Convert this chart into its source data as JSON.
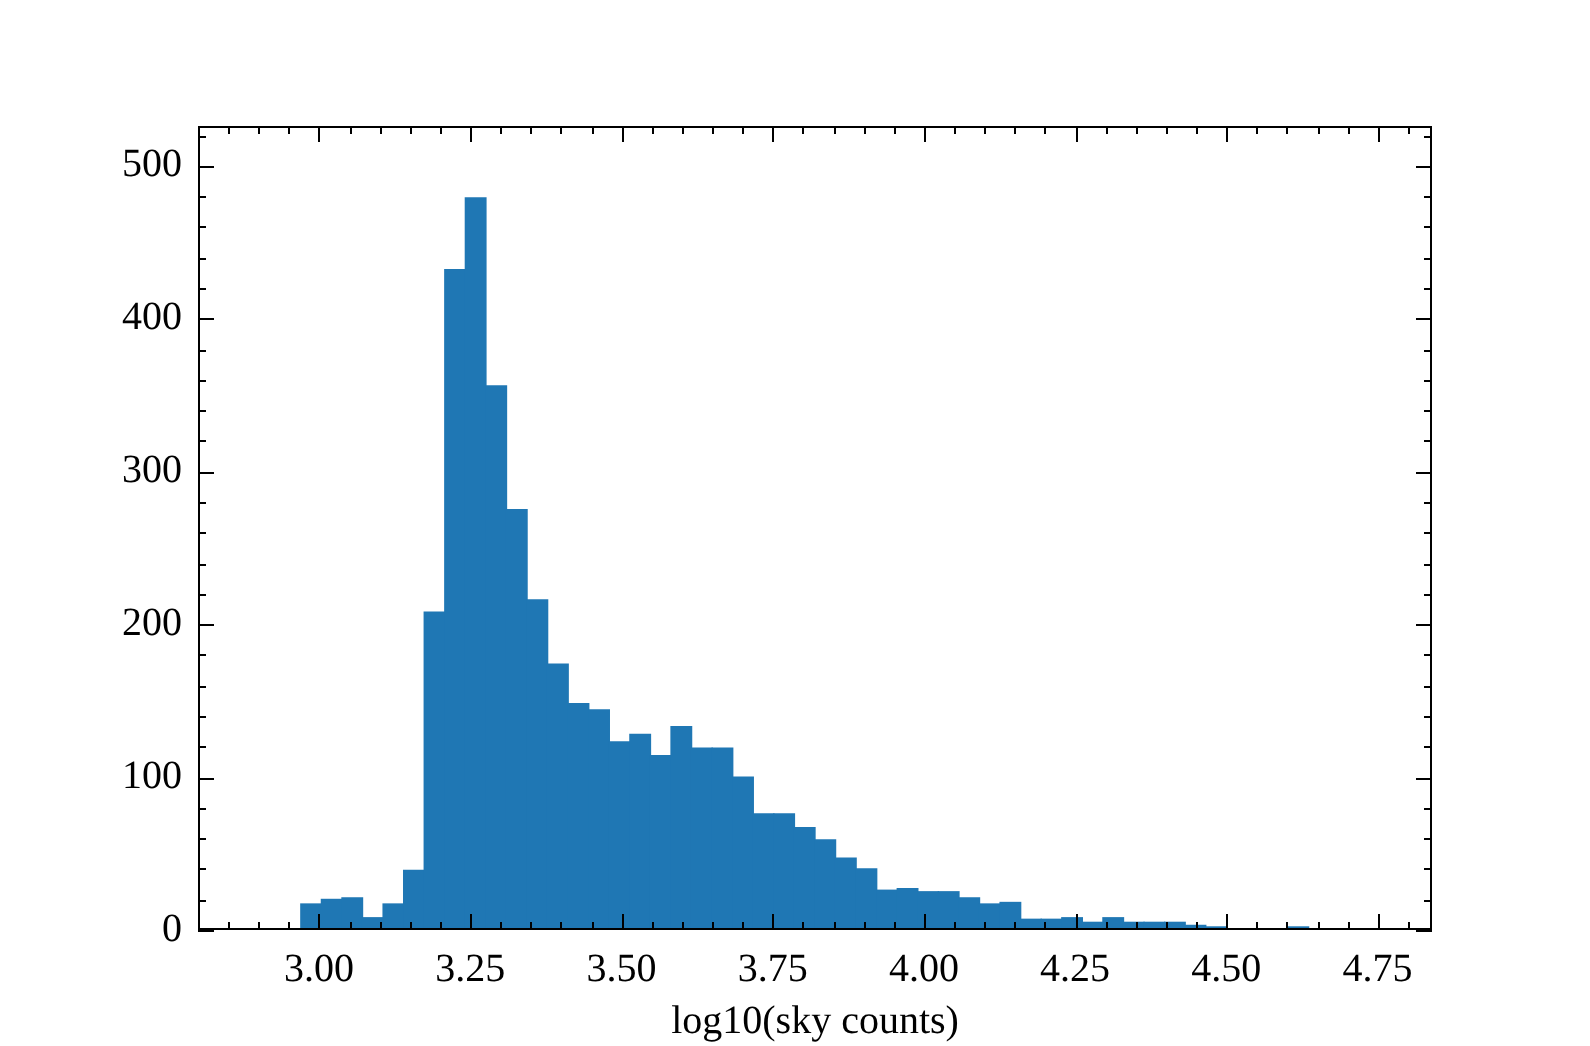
{
  "chart_data": {
    "type": "histogram",
    "xlabel": "log10(sky counts)",
    "bins": [
      2.97,
      3.004,
      3.038,
      3.072,
      3.106,
      3.14,
      3.174,
      3.208,
      3.242,
      3.276,
      3.31,
      3.344,
      3.378,
      3.412,
      3.446,
      3.48,
      3.514,
      3.548,
      3.582,
      3.616,
      3.65,
      3.684,
      3.718,
      3.752,
      3.786,
      3.82,
      3.854,
      3.888,
      3.922,
      3.956,
      3.99,
      4.024,
      4.058,
      4.092,
      4.126,
      4.16,
      4.194,
      4.228,
      4.262,
      4.296,
      4.33,
      4.364,
      4.398,
      4.432,
      4.466,
      4.5,
      4.534,
      4.568,
      4.602,
      4.636
    ],
    "values": [
      17,
      20,
      21,
      8,
      17,
      39,
      208,
      432,
      479,
      356,
      275,
      216,
      174,
      148,
      144,
      123,
      128,
      114,
      133,
      119,
      119,
      100,
      76,
      76,
      67,
      59,
      47,
      40,
      26,
      27,
      25,
      25,
      21,
      17,
      18,
      7,
      7,
      8,
      5,
      8,
      5,
      5,
      5,
      3,
      2,
      0,
      0,
      0,
      2
    ],
    "color": "#1f77b4",
    "xlim": [
      2.8,
      4.84
    ],
    "ylim": [
      0,
      526
    ],
    "xticks": [
      {
        "value": 2.85,
        "label": null
      },
      {
        "value": 2.9,
        "label": null
      },
      {
        "value": 2.95,
        "label": null
      },
      {
        "value": 3.0,
        "label": "3.00"
      },
      {
        "value": 3.05,
        "label": null
      },
      {
        "value": 3.1,
        "label": null
      },
      {
        "value": 3.15,
        "label": null
      },
      {
        "value": 3.2,
        "label": null
      },
      {
        "value": 3.25,
        "label": "3.25"
      },
      {
        "value": 3.3,
        "label": null
      },
      {
        "value": 3.35,
        "label": null
      },
      {
        "value": 3.4,
        "label": null
      },
      {
        "value": 3.45,
        "label": null
      },
      {
        "value": 3.5,
        "label": "3.50"
      },
      {
        "value": 3.55,
        "label": null
      },
      {
        "value": 3.6,
        "label": null
      },
      {
        "value": 3.65,
        "label": null
      },
      {
        "value": 3.7,
        "label": null
      },
      {
        "value": 3.75,
        "label": "3.75"
      },
      {
        "value": 3.8,
        "label": null
      },
      {
        "value": 3.85,
        "label": null
      },
      {
        "value": 3.9,
        "label": null
      },
      {
        "value": 3.95,
        "label": null
      },
      {
        "value": 4.0,
        "label": "4.00"
      },
      {
        "value": 4.05,
        "label": null
      },
      {
        "value": 4.1,
        "label": null
      },
      {
        "value": 4.15,
        "label": null
      },
      {
        "value": 4.2,
        "label": null
      },
      {
        "value": 4.25,
        "label": "4.25"
      },
      {
        "value": 4.3,
        "label": null
      },
      {
        "value": 4.35,
        "label": null
      },
      {
        "value": 4.4,
        "label": null
      },
      {
        "value": 4.45,
        "label": null
      },
      {
        "value": 4.5,
        "label": "4.50"
      },
      {
        "value": 4.55,
        "label": null
      },
      {
        "value": 4.6,
        "label": null
      },
      {
        "value": 4.65,
        "label": null
      },
      {
        "value": 4.7,
        "label": null
      },
      {
        "value": 4.75,
        "label": "4.75"
      },
      {
        "value": 4.8,
        "label": null
      }
    ],
    "yticks": [
      0,
      {
        "value": 20,
        "label": null
      },
      {
        "value": 40,
        "label": null
      },
      {
        "value": 60,
        "label": null
      },
      {
        "value": 80,
        "label": null
      },
      100,
      {
        "value": 120,
        "label": null
      },
      {
        "value": 140,
        "label": null
      },
      {
        "value": 160,
        "label": null
      },
      {
        "value": 180,
        "label": null
      },
      200,
      {
        "value": 220,
        "label": null
      },
      {
        "value": 240,
        "label": null
      },
      {
        "value": 260,
        "label": null
      },
      {
        "value": 280,
        "label": null
      },
      300,
      {
        "value": 320,
        "label": null
      },
      {
        "value": 340,
        "label": null
      },
      {
        "value": 360,
        "label": null
      },
      {
        "value": 380,
        "label": null
      },
      400,
      {
        "value": 420,
        "label": null
      },
      {
        "value": 440,
        "label": null
      },
      {
        "value": 460,
        "label": null
      },
      {
        "value": 480,
        "label": null
      },
      500,
      {
        "value": 520,
        "label": null
      }
    ],
    "grid": false,
    "legend": false
  }
}
